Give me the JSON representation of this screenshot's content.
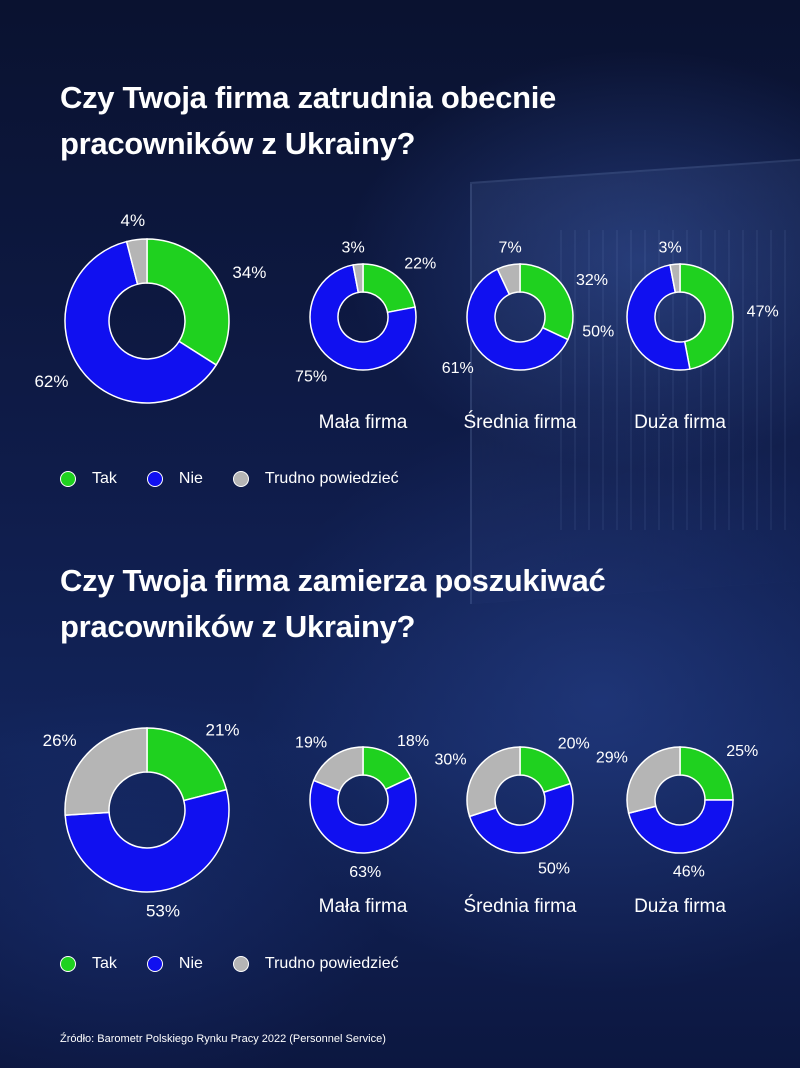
{
  "colors": {
    "Tak": "#1fd11f",
    "Nie": "#1010f0",
    "Trudno powiedzieć": "#b5b5b5"
  },
  "legend": [
    "Tak",
    "Nie",
    "Trudno powiedzieć"
  ],
  "source": "Źródło: Barometr Polskiego Rynku Pracy 2022 (Personnel Service)",
  "chart_data": [
    {
      "type": "pie",
      "title": "Czy Twoja firma zatrudnia obecnie pracowników z Ukrainy?",
      "series_order": [
        "Tak",
        "Nie",
        "Trudno powiedzieć"
      ],
      "groups": [
        {
          "label": "",
          "values": [
            34,
            62,
            4
          ]
        },
        {
          "label": "Mała firma",
          "values": [
            22,
            75,
            3
          ]
        },
        {
          "label": "Średnia firma",
          "values": [
            32,
            61,
            7
          ]
        },
        {
          "label": "Duża firma",
          "values": [
            47,
            50,
            3
          ]
        }
      ]
    },
    {
      "type": "pie",
      "title": "Czy Twoja firma zamierza poszukiwać pracowników z Ukrainy?",
      "series_order": [
        "Tak",
        "Nie",
        "Trudno powiedzieć"
      ],
      "groups": [
        {
          "label": "",
          "values": [
            21,
            53,
            26
          ]
        },
        {
          "label": "Mała firma",
          "values": [
            18,
            63,
            19
          ]
        },
        {
          "label": "Średnia firma",
          "values": [
            20,
            50,
            30
          ]
        },
        {
          "label": "Duża firma",
          "values": [
            25,
            46,
            29
          ]
        }
      ]
    }
  ]
}
